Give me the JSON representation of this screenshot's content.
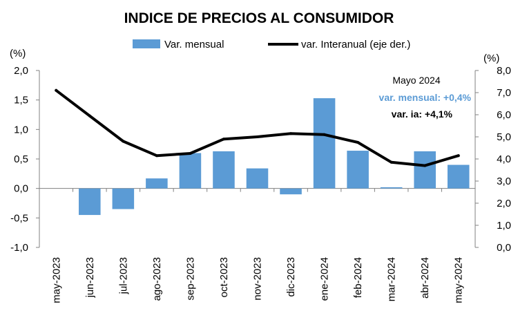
{
  "chart_data": {
    "type": "bar+line",
    "title": "INDICE DE PRECIOS AL CONSUMIDOR",
    "categories": [
      "may-2023",
      "jun-2023",
      "jul-2023",
      "ago-2023",
      "sep-2023",
      "oct-2023",
      "nov-2023",
      "dic-2023",
      "ene-2024",
      "feb-2024",
      "mar-2024",
      "abr-2024",
      "may-2024"
    ],
    "series": [
      {
        "name": "Var. mensual",
        "type": "bar",
        "axis": "left",
        "color": "#5b9bd5",
        "values": [
          null,
          -0.45,
          -0.35,
          0.17,
          0.6,
          0.63,
          0.34,
          -0.1,
          1.53,
          0.64,
          0.02,
          0.63,
          0.4
        ]
      },
      {
        "name": "var. Interanual (eje der.)",
        "type": "line",
        "axis": "right",
        "color": "#000000",
        "values": [
          7.1,
          5.95,
          4.8,
          4.15,
          4.25,
          4.9,
          5.0,
          5.15,
          5.1,
          4.75,
          3.85,
          3.7,
          4.15
        ]
      }
    ],
    "y_left": {
      "unit": "(%)",
      "ylim": [
        -1.0,
        2.0
      ],
      "ticks": [
        2.0,
        1.5,
        1.0,
        0.5,
        0.0,
        -0.5,
        -1.0
      ],
      "tick_labels": [
        "2,0",
        "1,5",
        "1,0",
        "0,5",
        "0,0",
        "-0,5",
        "-1,0"
      ]
    },
    "y_right": {
      "unit": "(%)",
      "ylim": [
        0.0,
        8.0
      ],
      "ticks": [
        8.0,
        7.0,
        6.0,
        5.0,
        4.0,
        3.0,
        2.0,
        1.0,
        0.0
      ],
      "tick_labels": [
        "8,0",
        "7,0",
        "6,0",
        "5,0",
        "4,0",
        "3,0",
        "2,0",
        "1,0",
        "0,0"
      ]
    },
    "annotation": {
      "line1": "Mayo 2024",
      "line2": "var. mensual: +0,4%",
      "line3": "var. ia: +4,1%",
      "line2_color": "#5b9bd5",
      "line3_color": "#000000"
    },
    "legend": "top",
    "grid": false
  }
}
